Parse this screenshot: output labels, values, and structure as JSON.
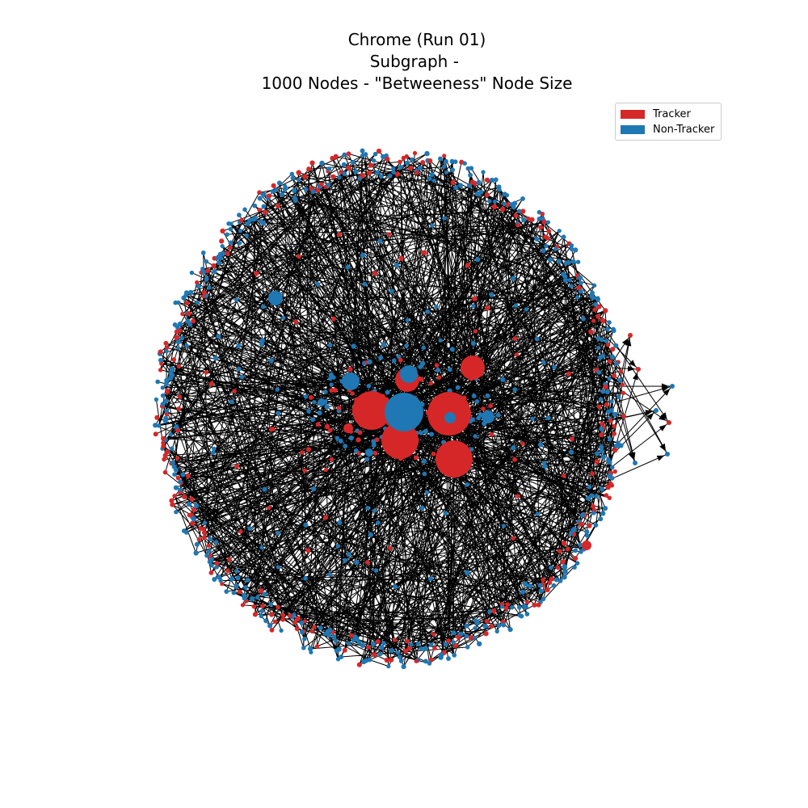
{
  "title": {
    "line1": "Chrome (Run 01)",
    "line2": "Subgraph - ",
    "line3": "1000 Nodes - \"Betweeness\" Node Size"
  },
  "legend": {
    "tracker_label": "Tracker",
    "non_tracker_label": "Non-Tracker"
  },
  "colors": {
    "tracker": "#d62728",
    "non_tracker": "#1f77b4",
    "edge": "#000000"
  },
  "graph": {
    "node_count": 1000,
    "tracker_fraction": 0.35
  }
}
